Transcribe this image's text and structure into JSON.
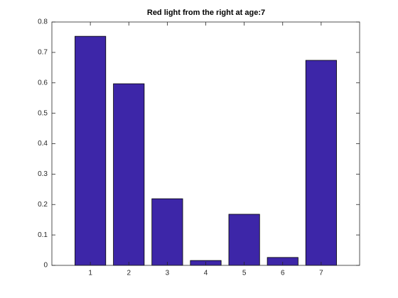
{
  "chart_data": {
    "type": "bar",
    "title": "Red light from the right at age:7",
    "x": [
      1,
      2,
      3,
      4,
      5,
      6,
      7
    ],
    "values": [
      0.753,
      0.597,
      0.219,
      0.016,
      0.168,
      0.026,
      0.674
    ],
    "color": "#3d26a8",
    "xlim": [
      0,
      8
    ],
    "xticks": [
      1,
      2,
      3,
      4,
      5,
      6,
      7
    ],
    "ylim": [
      0,
      0.8
    ],
    "yticks": [
      0,
      0.1,
      0.2,
      0.3,
      0.4,
      0.5,
      0.6,
      0.7,
      0.8
    ],
    "grid": false
  }
}
